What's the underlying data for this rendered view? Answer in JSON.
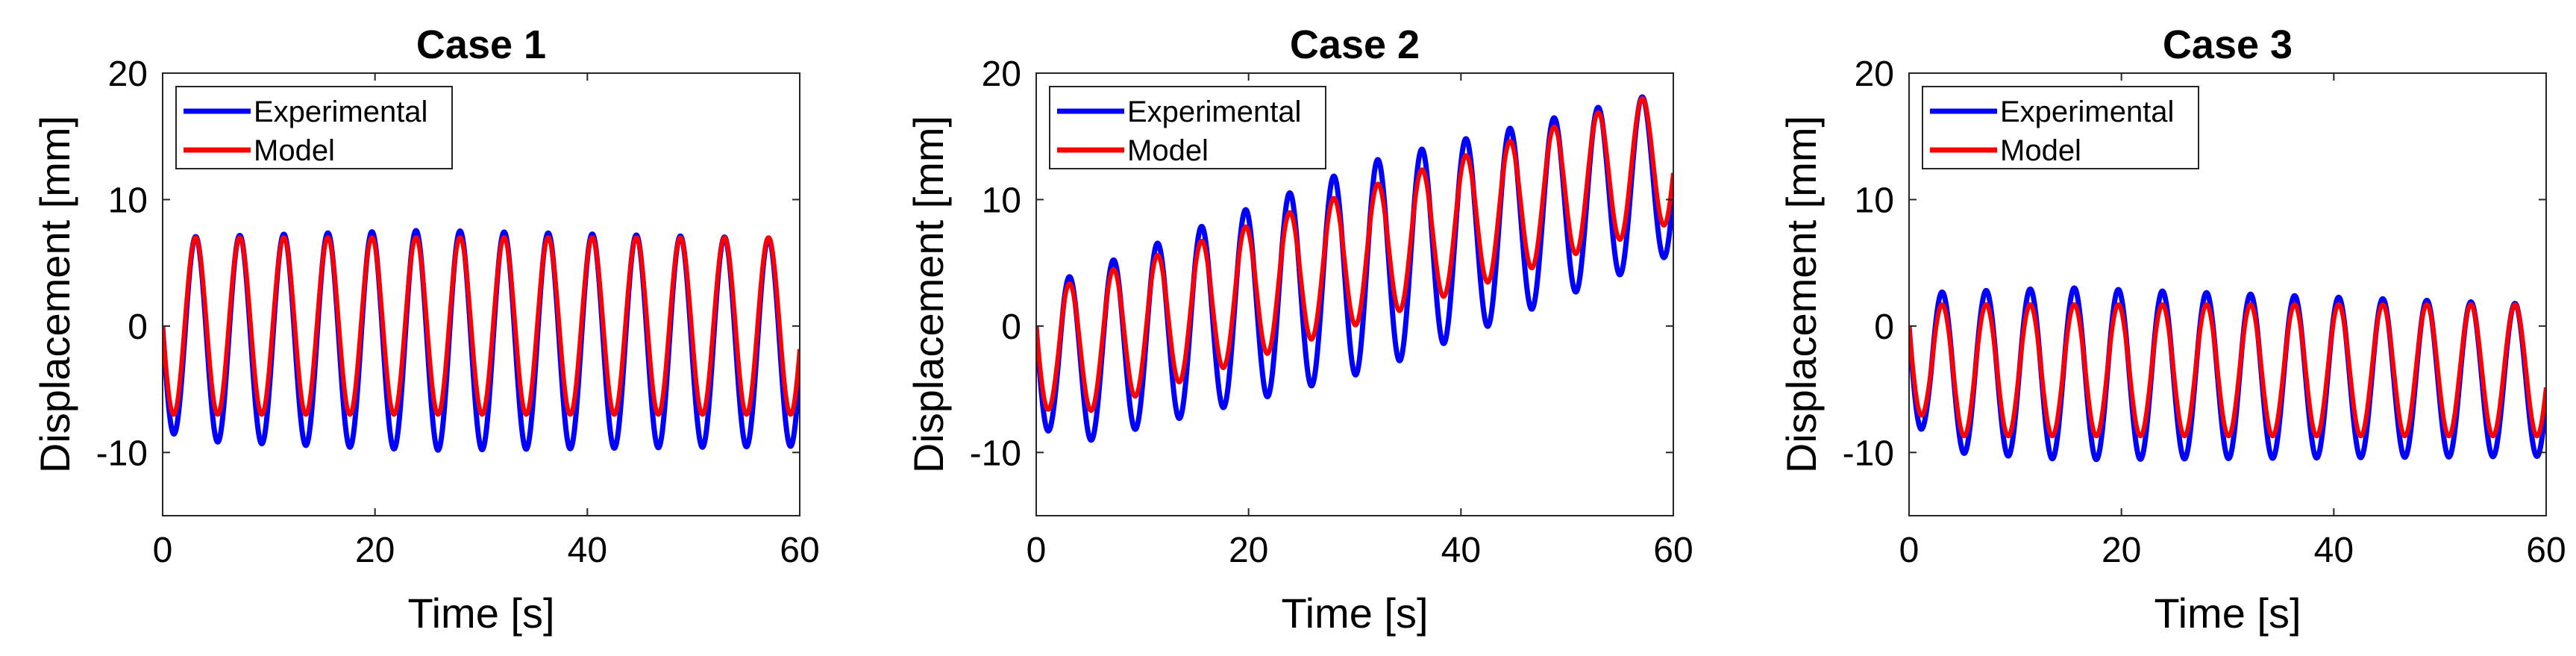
{
  "colors": {
    "experimental": "#0000ff",
    "model": "#ff0000",
    "axis": "#262626",
    "background": "#ffffff"
  },
  "chart_data": [
    {
      "type": "line",
      "title": "Case 1",
      "xlabel": "Time [s]",
      "ylabel": "Displacement [mm]",
      "xlim": [
        0,
        60
      ],
      "ylim": [
        -15,
        20
      ],
      "xticks": [
        0,
        20,
        40,
        60
      ],
      "yticks": [
        -10,
        0,
        10,
        20
      ],
      "grid": false,
      "legend_position": "top-left",
      "period_s": 4.15,
      "series": [
        {
          "name": "Experimental",
          "color": "#0000ff",
          "offset_start": -1.0,
          "offset_end": -1.3,
          "amp_start": 8.0,
          "amp_peak": 8.7,
          "amp_end": 8.2,
          "amp_peak_time": 25
        },
        {
          "name": "Model",
          "color": "#ff0000",
          "offset_start": 0.0,
          "offset_end": 0.0,
          "amp_start": 7.0,
          "amp_peak": 7.0,
          "amp_end": 7.0,
          "amp_peak_time": 25
        }
      ]
    },
    {
      "type": "line",
      "title": "Case 2",
      "xlabel": "Time [s]",
      "ylabel": "Displacement [mm]",
      "xlim": [
        0,
        60
      ],
      "ylim": [
        -15,
        20
      ],
      "xticks": [
        0,
        20,
        40,
        60
      ],
      "yticks": [
        -10,
        0,
        10,
        20
      ],
      "grid": false,
      "legend_position": "top-left",
      "period_s": 4.15,
      "series": [
        {
          "name": "Experimental",
          "color": "#0000ff",
          "offset_start": -3.6,
          "offset_end": 12.2,
          "amp_start": 6.5,
          "amp_peak": 8.3,
          "amp_end": 6.5,
          "amp_peak_time": 32
        },
        {
          "name": "Model",
          "color": "#ff0000",
          "offset_start": -2.8,
          "offset_end": 13.5,
          "amp_start": 5.3,
          "amp_peak": 5.3,
          "amp_end": 5.3,
          "amp_peak_time": 30
        }
      ]
    },
    {
      "type": "line",
      "title": "Case 3",
      "xlabel": "Time [s]",
      "ylabel": "Displacement [mm]",
      "xlim": [
        0,
        60
      ],
      "ylim": [
        -15,
        20
      ],
      "xticks": [
        0,
        20,
        40,
        60
      ],
      "yticks": [
        -10,
        0,
        10,
        20
      ],
      "grid": false,
      "legend_position": "top-left",
      "period_s": 4.15,
      "series": [
        {
          "name": "Experimental",
          "color": "#0000ff",
          "offset_start": -3.6,
          "offset_end": -4.3,
          "amp_start": 6.2,
          "amp_peak": 6.8,
          "amp_end": 6.0,
          "amp_peak_time": 15
        },
        {
          "name": "Model",
          "color": "#ff0000",
          "offset_start": -3.5,
          "offset_end": -3.5,
          "amp_start": 5.2,
          "amp_peak": 5.2,
          "amp_end": 5.2,
          "amp_peak_time": 30
        }
      ]
    }
  ]
}
